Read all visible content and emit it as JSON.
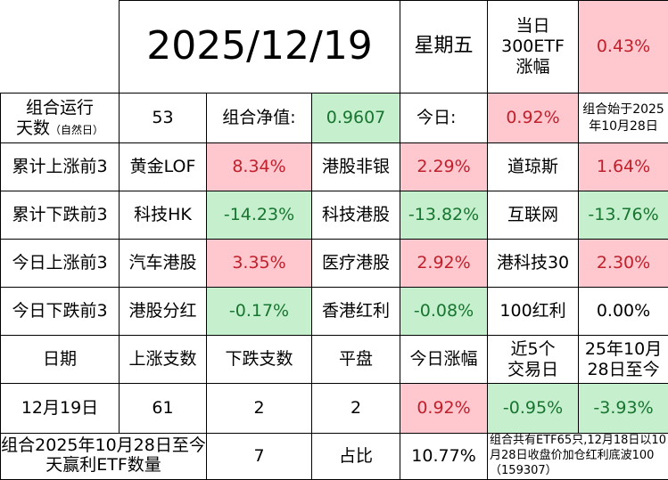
{
  "header": {
    "date": "2025/12/19",
    "weekday": "星期五",
    "index_label": "当日\n300ETF\n涨幅",
    "index_change": "0.43%"
  },
  "summary": {
    "run_days_label": "组合运行",
    "run_days_label2": "天数",
    "run_days_note": "（自然日）",
    "run_days": "53",
    "nav_label": "组合净值:",
    "nav_value": "0.9607",
    "today_label": "今日:",
    "today_value": "0.92%",
    "start_note": "组合始于2025年10月28日"
  },
  "rankings": [
    {
      "label": "累计上涨前3",
      "items": [
        {
          "name": "黄金LOF",
          "value": "8.34%",
          "tone": "pink"
        },
        {
          "name": "港股非银",
          "value": "2.29%",
          "tone": "pink"
        },
        {
          "name": "道琼斯",
          "value": "1.64%",
          "tone": "pink"
        }
      ]
    },
    {
      "label": "累计下跌前3",
      "items": [
        {
          "name": "科技HK",
          "value": "-14.23%",
          "tone": "green"
        },
        {
          "name": "科技港股",
          "value": "-13.82%",
          "tone": "green"
        },
        {
          "name": "互联网",
          "value": "-13.76%",
          "tone": "green"
        }
      ]
    },
    {
      "label": "今日上涨前3",
      "items": [
        {
          "name": "汽车港股",
          "value": "3.35%",
          "tone": "pink"
        },
        {
          "name": "医疗港股",
          "value": "2.92%",
          "tone": "pink"
        },
        {
          "name": "港科技30",
          "value": "2.30%",
          "tone": "pink"
        }
      ]
    },
    {
      "label": "今日下跌前3",
      "items": [
        {
          "name": "港股分红",
          "value": "-0.17%",
          "tone": "green"
        },
        {
          "name": "香港红利",
          "value": "-0.08%",
          "tone": "green"
        },
        {
          "name": "100红利",
          "value": "0.00%",
          "tone": "none"
        }
      ]
    }
  ],
  "stats": {
    "headers": [
      "日期",
      "上涨支数",
      "下跌支数",
      "平盘",
      "今日涨幅",
      "近5个\n交易日",
      "25年10月\n28日至今"
    ],
    "row": {
      "date": "12月19日",
      "up": "61",
      "down": "2",
      "flat": "2",
      "today": "0.92%",
      "last5": "-0.95%",
      "since": "-3.93%"
    }
  },
  "footer": {
    "label": "组合2025年10月28日至今天赢利ETF数量",
    "count": "7",
    "ratio_label": "占比",
    "ratio": "10.77%",
    "note": "组合共有ETF65只,12月18日以10月28日收盘价加仓红利底波100（159307）"
  },
  "colors": {
    "pink_bg": "#ffc7ce",
    "pink_text": "#c0202c",
    "green_bg": "#c6efce",
    "green_text": "#17752f"
  }
}
